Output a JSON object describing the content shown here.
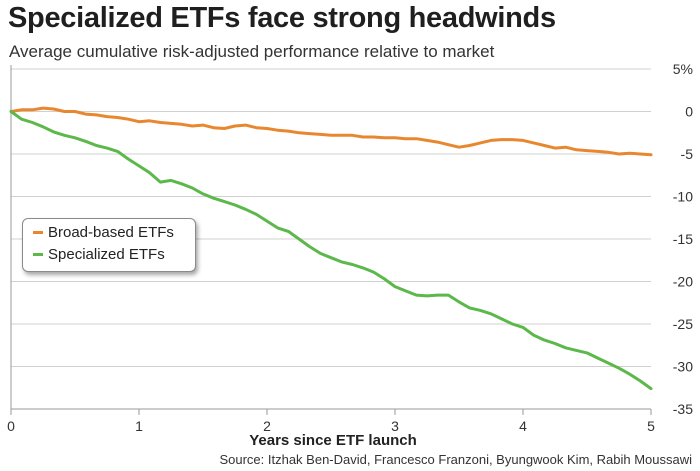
{
  "title": "Specialized ETFs face strong headwinds",
  "subtitle": "Average cumulative risk-adjusted performance relative to market",
  "source": "Source: Itzhak Ben-David, Francesco Franzoni, Byungwook Kim, Rabih Moussawi",
  "chart_data": {
    "type": "line",
    "title": "Specialized ETFs face strong headwinds",
    "subtitle": "Average cumulative risk-adjusted performance relative to market",
    "xlabel": "Years since ETF launch",
    "ylabel": "",
    "xlim": [
      0,
      5
    ],
    "ylim": [
      -35,
      5
    ],
    "x_ticks": [
      "0",
      "1",
      "2",
      "3",
      "4",
      "5"
    ],
    "y_ticks": [
      "5%",
      "0",
      "-5",
      "-10",
      "-15",
      "-20",
      "-25",
      "-30",
      "-35"
    ],
    "y_tick_values": [
      5,
      0,
      -5,
      -10,
      -15,
      -20,
      -25,
      -30,
      -35
    ],
    "grid": "horizontal",
    "legend_position": "left",
    "x": [
      0,
      0.083,
      0.167,
      0.25,
      0.333,
      0.417,
      0.5,
      0.583,
      0.667,
      0.75,
      0.833,
      0.917,
      1.0,
      1.083,
      1.167,
      1.25,
      1.333,
      1.417,
      1.5,
      1.583,
      1.667,
      1.75,
      1.833,
      1.917,
      2.0,
      2.083,
      2.167,
      2.25,
      2.333,
      2.417,
      2.5,
      2.583,
      2.667,
      2.75,
      2.833,
      2.917,
      3.0,
      3.083,
      3.167,
      3.25,
      3.333,
      3.417,
      3.5,
      3.583,
      3.667,
      3.75,
      3.833,
      3.917,
      4.0,
      4.083,
      4.167,
      4.25,
      4.333,
      4.417,
      4.5,
      4.583,
      4.667,
      4.75,
      4.833,
      4.917,
      5.0
    ],
    "series": [
      {
        "name": "Broad-based ETFs",
        "color": "#e8872e",
        "values": [
          0,
          0.2,
          0.2,
          0.4,
          0.3,
          0,
          0,
          -0.3,
          -0.4,
          -0.6,
          -0.7,
          -0.9,
          -1.2,
          -1.1,
          -1.3,
          -1.4,
          -1.5,
          -1.7,
          -1.6,
          -1.9,
          -2.0,
          -1.7,
          -1.6,
          -1.9,
          -2.0,
          -2.2,
          -2.3,
          -2.5,
          -2.6,
          -2.7,
          -2.8,
          -2.8,
          -2.8,
          -3.0,
          -3.0,
          -3.1,
          -3.1,
          -3.2,
          -3.2,
          -3.4,
          -3.6,
          -3.9,
          -4.2,
          -4.0,
          -3.7,
          -3.4,
          -3.3,
          -3.3,
          -3.4,
          -3.7,
          -4.0,
          -4.3,
          -4.2,
          -4.5,
          -4.6,
          -4.7,
          -4.8,
          -5.0,
          -4.9,
          -5.0,
          -5.1
        ]
      },
      {
        "name": "Specialized ETFs",
        "color": "#5cb84a",
        "values": [
          0,
          -0.9,
          -1.3,
          -1.8,
          -2.4,
          -2.8,
          -3.1,
          -3.5,
          -4.0,
          -4.3,
          -4.7,
          -5.6,
          -6.4,
          -7.2,
          -8.3,
          -8.1,
          -8.5,
          -9.0,
          -9.7,
          -10.2,
          -10.6,
          -11.0,
          -11.5,
          -12.1,
          -12.9,
          -13.7,
          -14.1,
          -15.0,
          -15.9,
          -16.7,
          -17.2,
          -17.7,
          -18.0,
          -18.4,
          -18.9,
          -19.7,
          -20.6,
          -21.1,
          -21.6,
          -21.7,
          -21.6,
          -21.6,
          -22.4,
          -23.1,
          -23.4,
          -23.8,
          -24.4,
          -25.0,
          -25.4,
          -26.3,
          -26.9,
          -27.3,
          -27.8,
          -28.1,
          -28.4,
          -29.0,
          -29.6,
          -30.2,
          -30.9,
          -31.7,
          -32.6
        ]
      }
    ]
  }
}
